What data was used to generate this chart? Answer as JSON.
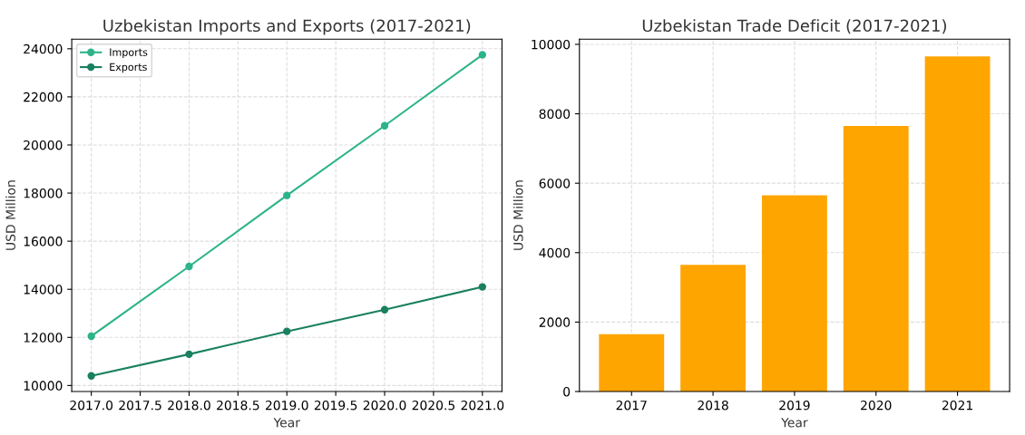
{
  "chart_data": [
    {
      "type": "line",
      "title": "Uzbekistan Imports and Exports (2017-2021)",
      "xlabel": "Year",
      "ylabel": "USD Million",
      "x": [
        2017,
        2018,
        2019,
        2020,
        2021
      ],
      "series": [
        {
          "name": "Imports",
          "color": "#2db38a",
          "values": [
            12050,
            14950,
            17900,
            20800,
            23750
          ]
        },
        {
          "name": "Exports",
          "color": "#1a8060",
          "values": [
            10400,
            11300,
            12250,
            13150,
            14100
          ]
        }
      ],
      "xlim": [
        2016.8,
        2021.2
      ],
      "xticks": [
        {
          "value": 2017,
          "label": "2017.0"
        },
        {
          "value": 2017.5,
          "label": "2017.5"
        },
        {
          "value": 2018,
          "label": "2018.0"
        },
        {
          "value": 2018.5,
          "label": "2018.5"
        },
        {
          "value": 2019,
          "label": "2019.0"
        },
        {
          "value": 2019.5,
          "label": "2019.5"
        },
        {
          "value": 2020,
          "label": "2020.0"
        },
        {
          "value": 2020.5,
          "label": "2020.5"
        },
        {
          "value": 2021,
          "label": "2021.0"
        }
      ],
      "ylim": [
        9750,
        24400
      ],
      "yticks": [
        10000,
        12000,
        14000,
        16000,
        18000,
        20000,
        22000,
        24000
      ],
      "grid": true,
      "legend": "top left",
      "marker": "circle",
      "line_style": "solid"
    },
    {
      "type": "bar",
      "title": "Uzbekistan Trade Deficit (2017-2021)",
      "xlabel": "Year",
      "ylabel": "USD Million",
      "categories": [
        "2017",
        "2018",
        "2019",
        "2020",
        "2021"
      ],
      "values": [
        1650,
        3650,
        5650,
        7650,
        9650
      ],
      "color": "#ffa500",
      "ylim": [
        0,
        10150
      ],
      "yticks": [
        0,
        2000,
        4000,
        6000,
        8000,
        10000
      ],
      "grid": true
    }
  ]
}
